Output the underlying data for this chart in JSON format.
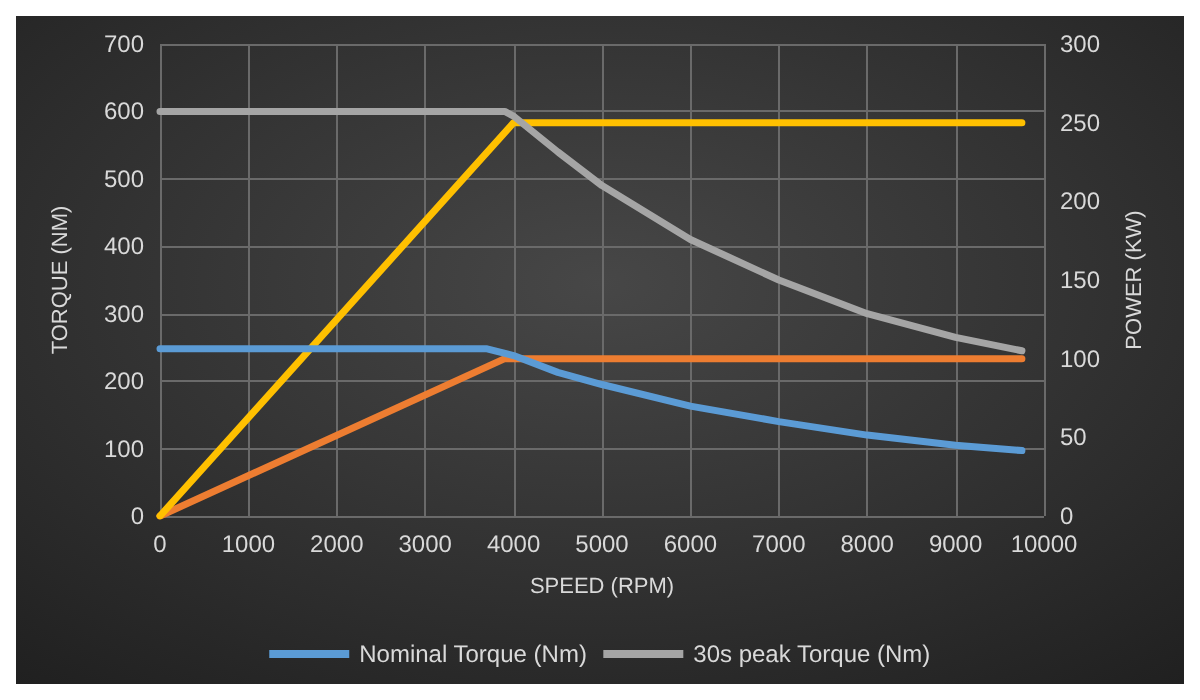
{
  "chart_data": {
    "type": "line",
    "xlabel": "SPEED (RPM)",
    "ylabel": "TORQUE (NM)",
    "y2label": "POWER (KW)",
    "xlim": [
      0,
      10000
    ],
    "xticks": [
      0,
      1000,
      2000,
      3000,
      4000,
      5000,
      6000,
      7000,
      8000,
      9000,
      10000
    ],
    "ylim": [
      0,
      700
    ],
    "yticks": [
      0,
      100,
      200,
      300,
      400,
      500,
      600,
      700
    ],
    "y2lim": [
      0,
      300
    ],
    "y2ticks": [
      0,
      50,
      100,
      150,
      200,
      250,
      300
    ],
    "grid": true,
    "legend": "bottom",
    "marker": "none",
    "line_style": "solid",
    "series": [
      {
        "name": "Nominal Torque (Nm)",
        "color": "#5b9bd5",
        "x": [
          0,
          3700,
          4000,
          4500,
          5000,
          6000,
          7000,
          8000,
          9000,
          9750
        ],
        "values": [
          248,
          248,
          238,
          213,
          195,
          163,
          140,
          120,
          105,
          97
        ]
      },
      {
        "name": "30s peak Torque (Nm)",
        "color": "#a5a5a5",
        "x": [
          0,
          3900,
          4000,
          4500,
          5000,
          6000,
          7000,
          8000,
          9000,
          9750
        ],
        "values": [
          600,
          600,
          593,
          540,
          490,
          410,
          350,
          300,
          265,
          245
        ]
      },
      {
        "color": "#ffc000",
        "axis": "y2",
        "x": [
          0,
          4000,
          9750
        ],
        "values": [
          0,
          250,
          250
        ]
      },
      {
        "color": "#ed7d31",
        "axis": "y2",
        "x": [
          0,
          3900,
          9750
        ],
        "values": [
          0,
          100,
          100
        ]
      }
    ]
  }
}
